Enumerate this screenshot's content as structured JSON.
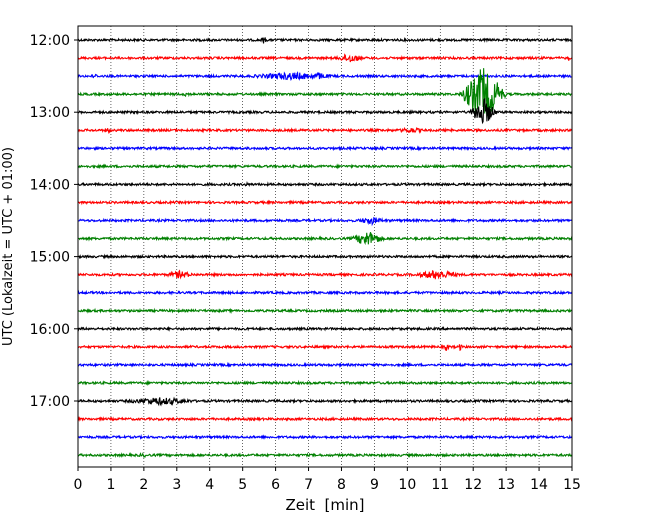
{
  "chart_data": {
    "type": "line",
    "title": "",
    "xlabel": "Zeit  [min]",
    "ylabel": "UTC (Lokalzeit = UTC + 01:00)",
    "xlim": [
      0,
      15
    ],
    "x_ticks": [
      "0",
      "1",
      "2",
      "3",
      "4",
      "5",
      "6",
      "7",
      "8",
      "9",
      "10",
      "11",
      "12",
      "13",
      "14",
      "15"
    ],
    "y_tick_labels": [
      "12:00",
      "13:00",
      "14:00",
      "15:00",
      "16:00",
      "17:00"
    ],
    "grid": "vertical dotted lines at each minute",
    "row_interval_min": 15,
    "color_cycle": [
      "#000000",
      "#ff0000",
      "#0000ff",
      "#008000"
    ],
    "series": [
      {
        "start": "12:00",
        "color": "#000000",
        "events": [
          {
            "t": 5.65,
            "amp": 4,
            "w": 0.08
          }
        ]
      },
      {
        "start": "12:15",
        "color": "#ff0000",
        "events": [
          {
            "t": 8.25,
            "amp": 5,
            "w": 0.35
          },
          {
            "t": 14.9,
            "amp": 3,
            "w": 0.05
          }
        ]
      },
      {
        "start": "12:30",
        "color": "#0000ff",
        "events": [
          {
            "t": 0.5,
            "amp": 3,
            "w": 0.1
          },
          {
            "t": 6.5,
            "amp": 4,
            "w": 1.2
          },
          {
            "t": 7.3,
            "amp": 4,
            "w": 0.3
          }
        ]
      },
      {
        "start": "12:45",
        "color": "#008000",
        "events": [
          {
            "t": 3.3,
            "amp": 3,
            "w": 0.1
          },
          {
            "t": 12.3,
            "amp": 28,
            "w": 0.5
          }
        ]
      },
      {
        "start": "13:00",
        "color": "#000000",
        "events": [
          {
            "t": 12.3,
            "amp": 15,
            "w": 0.3
          }
        ]
      },
      {
        "start": "13:15",
        "color": "#ff0000",
        "events": [
          {
            "t": 0.9,
            "amp": 4,
            "w": 0.08
          },
          {
            "t": 10.1,
            "amp": 3,
            "w": 0.4
          }
        ]
      },
      {
        "start": "13:30",
        "color": "#0000ff",
        "events": []
      },
      {
        "start": "13:45",
        "color": "#008000",
        "events": []
      },
      {
        "start": "14:00",
        "color": "#000000",
        "events": [
          {
            "t": 5.1,
            "amp": 3,
            "w": 0.05
          }
        ]
      },
      {
        "start": "14:15",
        "color": "#ff0000",
        "events": []
      },
      {
        "start": "14:30",
        "color": "#0000ff",
        "events": [
          {
            "t": 8.9,
            "amp": 4,
            "w": 0.4
          }
        ]
      },
      {
        "start": "14:45",
        "color": "#008000",
        "events": [
          {
            "t": 8.8,
            "amp": 8,
            "w": 0.4
          }
        ]
      },
      {
        "start": "15:00",
        "color": "#000000",
        "events": []
      },
      {
        "start": "15:15",
        "color": "#ff0000",
        "events": [
          {
            "t": 3.1,
            "amp": 4,
            "w": 0.4
          },
          {
            "t": 10.9,
            "amp": 5,
            "w": 0.6
          }
        ]
      },
      {
        "start": "15:30",
        "color": "#0000ff",
        "events": []
      },
      {
        "start": "15:45",
        "color": "#008000",
        "events": []
      },
      {
        "start": "16:00",
        "color": "#000000",
        "events": []
      },
      {
        "start": "16:15",
        "color": "#ff0000",
        "events": [
          {
            "t": 11.2,
            "amp": 5,
            "w": 0.06
          },
          {
            "t": 11.6,
            "amp": 4,
            "w": 0.06
          }
        ]
      },
      {
        "start": "16:30",
        "color": "#0000ff",
        "events": []
      },
      {
        "start": "16:45",
        "color": "#008000",
        "events": []
      },
      {
        "start": "17:00",
        "color": "#000000",
        "events": [
          {
            "t": 2.5,
            "amp": 4,
            "w": 1.0
          }
        ]
      },
      {
        "start": "17:15",
        "color": "#ff0000",
        "events": []
      },
      {
        "start": "17:30",
        "color": "#0000ff",
        "events": []
      },
      {
        "start": "17:45",
        "color": "#008000",
        "events": [
          {
            "t": 2.0,
            "amp": 2,
            "w": 0.3
          }
        ]
      }
    ]
  }
}
